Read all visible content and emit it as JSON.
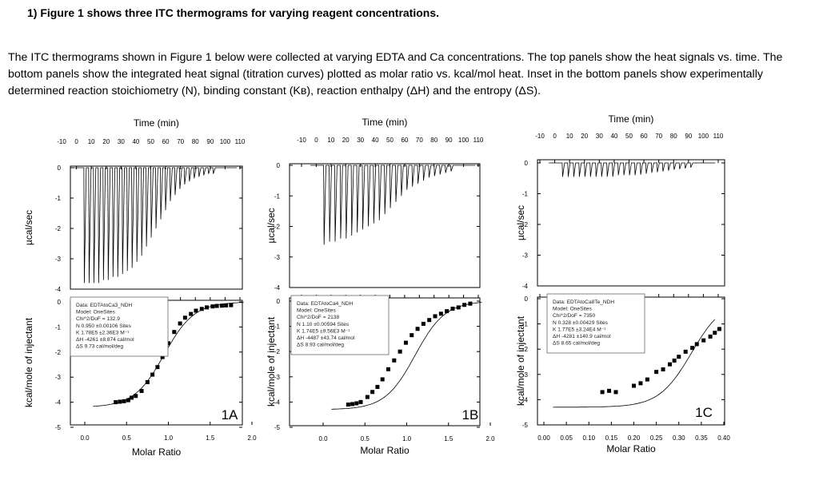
{
  "question": "1)  Figure 1 shows three ITC thermograms for varying reagent concentrations.",
  "paragraph": "The ITC thermograms shown in Figure 1 below were collected at varying EDTA and Ca concentrations. The top panels show the heat signals vs. time. The bottom panels show the integrated heat signal (titration curves) plotted as molar ratio vs. kcal/mol heat.  Inset in the bottom panels show experimentally determined reaction stoichiometry (N), binding constant (Kʙ), reaction enthalpy (ΔH) and the entropy (ΔS).",
  "chart_data": [
    {
      "type": "scatter",
      "label": "1A",
      "top": {
        "xlabel": "Time (min)",
        "ylabel": "µcal/sec",
        "xticks": [
          "-10",
          "0",
          "10",
          "20",
          "30",
          "40",
          "50",
          "60",
          "70",
          "80",
          "90",
          "100",
          "110"
        ],
        "yticks": [
          "0",
          "-1",
          "-2",
          "-3",
          "-4"
        ],
        "ylim": [
          -4,
          0.1
        ],
        "injection_peaks": [
          -3.8,
          -3.8,
          -3.8,
          -3.8,
          -3.7,
          -3.7,
          -3.6,
          -3.6,
          -3.5,
          -3.4,
          -3.3,
          -3.1,
          -2.9,
          -2.6,
          -2.3,
          -2.0,
          -1.7,
          -1.4,
          -1.1,
          -0.9,
          -0.7,
          -0.55,
          -0.45,
          -0.35,
          -0.3,
          -0.25,
          -0.2,
          -0.2
        ]
      },
      "bottom": {
        "xlabel": "Molar Ratio",
        "ylabel": "kcal/mole of injectant",
        "xticks": [
          "0.0",
          "0.5",
          "1.0",
          "1.5",
          "2.0"
        ],
        "yticks": [
          "0",
          "-1",
          "-2",
          "-3",
          "-4",
          "-5"
        ],
        "xlim": [
          0,
          2.0
        ],
        "ylim": [
          -5,
          0
        ],
        "x": [
          0.37,
          0.42,
          0.47,
          0.52,
          0.56,
          0.61,
          0.68,
          0.75,
          0.81,
          0.87,
          0.93,
          1.0,
          1.07,
          1.14,
          1.2,
          1.27,
          1.33,
          1.4,
          1.46,
          1.53,
          1.58,
          1.64,
          1.69,
          1.75
        ],
        "y": [
          -4.0,
          -3.98,
          -3.96,
          -3.92,
          -3.82,
          -3.75,
          -3.55,
          -3.2,
          -2.9,
          -2.6,
          -2.2,
          -1.65,
          -1.2,
          -0.86,
          -0.63,
          -0.48,
          -0.35,
          -0.28,
          -0.22,
          -0.18,
          -0.16,
          -0.15,
          -0.14,
          -0.13
        ],
        "fit": {
          "N": 0.95,
          "dH": -4.261,
          "base": -4.2
        }
      },
      "inset": [
        "Data: EDTAtoCa3_NDH",
        "Model: OneSites",
        "Chi^2/DoF = 132.9",
        "N      0.950   ±0.00106 Sites",
        "K      1.78E5  ±2.36E3 M⁻¹",
        "ΔH     -4261   ±8.874 cal/mol",
        "ΔS     9.73 cal/mol/deg"
      ]
    },
    {
      "type": "scatter",
      "label": "1B",
      "top": {
        "xlabel": "Time (min)",
        "ylabel": "µcal/sec",
        "xticks": [
          "-10",
          "0",
          "10",
          "20",
          "30",
          "40",
          "50",
          "60",
          "70",
          "80",
          "90",
          "100",
          "110"
        ],
        "yticks": [
          "0",
          "-1",
          "-2",
          "-3",
          "-4"
        ],
        "ylim": [
          -4,
          0.1
        ],
        "injection_peaks": [
          -2.6,
          -2.5,
          -2.5,
          -2.4,
          -2.4,
          -2.3,
          -2.2,
          -2.1,
          -2.0,
          -1.9,
          -1.8,
          -1.6,
          -1.4,
          -1.2,
          -1.0,
          -0.8,
          -0.7,
          -0.6,
          -0.5,
          -0.4,
          -0.35,
          -0.3,
          -0.25,
          -0.2
        ]
      },
      "bottom": {
        "xlabel": "Molar Ratio",
        "ylabel": "kcal/mole of injectant",
        "xticks": [
          "0.0",
          "0.5",
          "1.0",
          "1.5",
          "2.0"
        ],
        "yticks": [
          "0",
          "-1",
          "-2",
          "-3",
          "-4",
          "-5"
        ],
        "xlim": [
          0,
          2.0
        ],
        "ylim": [
          -5,
          0
        ],
        "x": [
          0.3,
          0.35,
          0.4,
          0.45,
          0.53,
          0.59,
          0.65,
          0.71,
          0.78,
          0.85,
          0.92,
          0.99,
          1.06,
          1.13,
          1.2,
          1.27,
          1.34,
          1.41,
          1.48,
          1.55,
          1.62,
          1.69,
          1.76
        ],
        "y": [
          -4.1,
          -4.08,
          -4.05,
          -4.0,
          -3.8,
          -3.6,
          -3.4,
          -3.1,
          -2.7,
          -2.35,
          -2.0,
          -1.65,
          -1.35,
          -1.1,
          -0.9,
          -0.75,
          -0.6,
          -0.5,
          -0.4,
          -0.3,
          -0.25,
          -0.15,
          -0.1
        ],
        "fit": {
          "N": 1.1,
          "dH": -4.487,
          "base": -4.3
        }
      },
      "inset": [
        "Data: EDTAtoCa4_NDH",
        "Model: OneSites",
        "Chi^2/DoF = 2138",
        "N      1.10    ±0.00594 Sites",
        "K      1.74E5  ±9.56E3 M⁻¹",
        "ΔH     -4487   ±43.74 cal/mol",
        "ΔS     8.93 cal/mol/deg"
      ]
    },
    {
      "type": "scatter",
      "label": "1C",
      "top": {
        "xlabel": "Time (min)",
        "ylabel": "µcal/sec",
        "xticks": [
          "-10",
          "0",
          "10",
          "20",
          "30",
          "40",
          "50",
          "60",
          "70",
          "80",
          "90",
          "100",
          "110"
        ],
        "yticks": [
          "0",
          "-1",
          "-2",
          "-3",
          "-4"
        ],
        "ylim": [
          -4,
          0.1
        ],
        "injection_peaks": [
          -0.45,
          -0.45,
          -0.45,
          -0.45,
          -0.45,
          -0.45,
          -0.45,
          -0.45,
          -0.45,
          -0.45,
          -0.4,
          -0.4,
          -0.4,
          -0.4,
          -0.38,
          -0.35,
          -0.32,
          -0.3,
          -0.28,
          -0.25,
          -0.22,
          -0.2,
          -0.18,
          -0.15
        ]
      },
      "bottom": {
        "xlabel": "Molar Ratio",
        "ylabel": "kcal/mole of injectant",
        "xticks": [
          "0.00",
          "0.05",
          "0.10",
          "0.15",
          "0.20",
          "0.25",
          "0.30",
          "0.35",
          "0.40"
        ],
        "yticks": [
          "0",
          "-1",
          "-2",
          "-3",
          "-4",
          "-5"
        ],
        "xlim": [
          0,
          0.4
        ],
        "ylim": [
          -5,
          0
        ],
        "x": [
          0.13,
          0.145,
          0.16,
          0.2,
          0.215,
          0.23,
          0.25,
          0.265,
          0.28,
          0.29,
          0.3,
          0.315,
          0.33,
          0.34,
          0.355,
          0.37,
          0.38,
          0.39
        ],
        "y": [
          -3.7,
          -3.65,
          -3.7,
          -3.45,
          -3.35,
          -3.2,
          -2.9,
          -2.8,
          -2.6,
          -2.45,
          -2.3,
          -2.1,
          -1.95,
          -1.8,
          -1.65,
          -1.5,
          -1.35,
          -1.2
        ],
        "fit": {
          "N": 0.328,
          "dH": -4.281,
          "base": -4.3
        }
      },
      "inset": [
        "Data: EDTAtoCa8Te_NDH",
        "Model: OneSites",
        "Chi^2/DoF = 7350",
        "N      0.328   ±0.00429 Sites",
        "K      1.77E5  ±3.24E4 M⁻¹",
        "ΔH     -4281   ±140.9 cal/mol",
        "ΔS     8.65 cal/mol/deg"
      ]
    }
  ]
}
